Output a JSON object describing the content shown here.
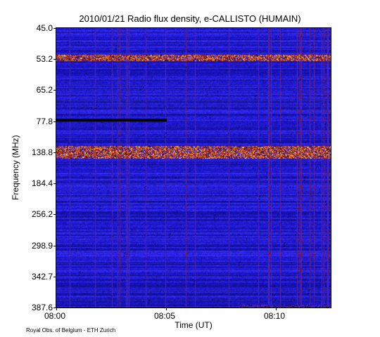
{
  "chart_data": {
    "type": "heatmap",
    "title": "2010/01/21  Radio flux density, e-CALLISTO (HUMAIN)",
    "xlabel": "Time (UT)",
    "ylabel": "Frequency (MHz)",
    "x_ticks": [
      "08:00",
      "08:05",
      "08:10"
    ],
    "x_tick_minutes": [
      0,
      5,
      10
    ],
    "x_range_minutes": [
      0,
      12.5
    ],
    "y_ticks": [
      "45.0",
      "53.2",
      "65.2",
      "77.8",
      "138.8",
      "184.4",
      "256.2",
      "298.9",
      "342.7",
      "387.6"
    ],
    "y_axis_inverted": true,
    "colorscale": [
      "#000000",
      "#1a14c8",
      "#3a32ff",
      "#8c0f0f",
      "#e04a12",
      "#ffc23a",
      "#ffffff"
    ],
    "features": [
      {
        "name": "broadband emission band",
        "freq_mhz": [
          52.0,
          53.8
        ],
        "time_min": [
          0,
          12.5
        ],
        "level": "high"
      },
      {
        "name": "broadband emission band",
        "freq_mhz": [
          126.0,
          148.0
        ],
        "time_min": [
          0,
          12.5
        ],
        "level": "high"
      },
      {
        "name": "dropout band",
        "freq_mhz": [
          76.5,
          77.8
        ],
        "time_min": [
          0,
          5.0
        ],
        "level": "low"
      },
      {
        "name": "enhanced patch",
        "freq_mhz": [
          383.0,
          387.6
        ],
        "time_min": [
          8.3,
          12.5
        ],
        "level": "medium"
      }
    ]
  },
  "footer": {
    "credit": "Royal Obs. of Belgium - ETH Zurich"
  }
}
